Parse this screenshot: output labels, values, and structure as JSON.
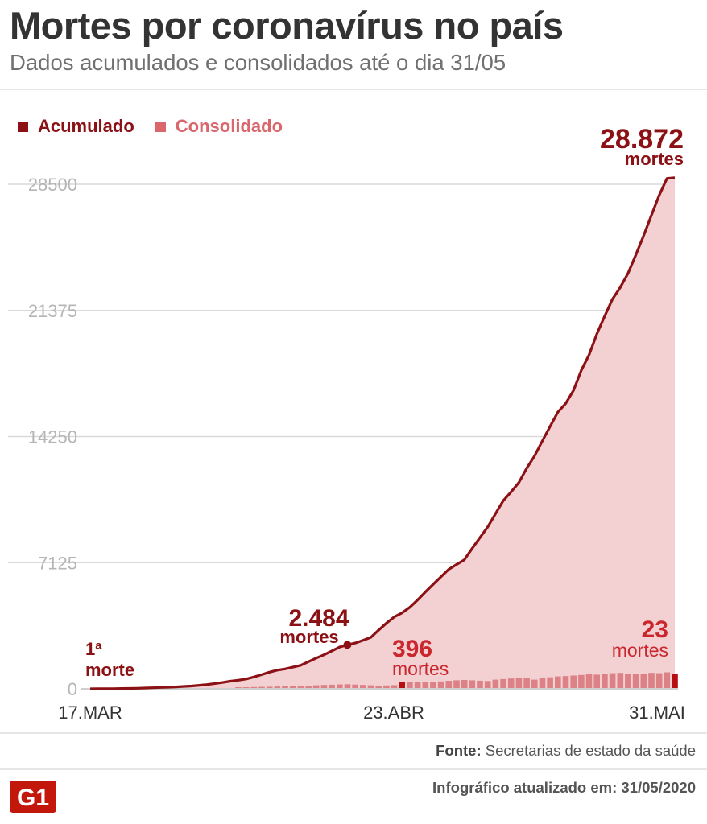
{
  "header": {
    "title": "Mortes por coronavírus no país",
    "subtitle": "Dados acumulados e consolidados até o dia 31/05"
  },
  "legend": [
    {
      "label": "Acumulado",
      "color": "#8b1115"
    },
    {
      "label": "Consolidado",
      "color": "#d9676c"
    }
  ],
  "colors": {
    "accent": "#8b1115",
    "bars": "#dc8286",
    "bar_highlight": "#b50f14",
    "area": "#f3d0d2",
    "grid": "#d9d9d9",
    "axis_text": "#b5b5b5"
  },
  "annotations": {
    "first_death": {
      "line1": "1ª",
      "line2": "morte"
    },
    "mid_total": {
      "value": "2.484",
      "unit": "mortes"
    },
    "mid_daily": {
      "value": "396",
      "unit": "mortes"
    },
    "end_total": {
      "value": "28.872",
      "unit": "mortes"
    },
    "end_daily": {
      "value": "23",
      "unit": "mortes"
    }
  },
  "footer": {
    "source_label": "Fonte:",
    "source_text": "Secretarias de estado da saúde",
    "updated": "Infográfico atualizado em: 31/05/2020",
    "logo_text": "G1"
  },
  "chart_data": {
    "type": "area",
    "x_start_label": "17.MAR",
    "x_ticks": [
      "17.MAR",
      "23.ABR",
      "31.MAI"
    ],
    "x_tick_index": [
      0,
      37,
      75
    ],
    "y_ticks": [
      0,
      7125,
      14250,
      21375,
      28500
    ],
    "ylim": [
      0,
      30000
    ],
    "series": [
      {
        "name": "Acumulado",
        "type": "line-area",
        "values": [
          1,
          4,
          7,
          11,
          18,
          25,
          34,
          46,
          57,
          77,
          92,
          111,
          136,
          159,
          201,
          240,
          299,
          359,
          432,
          486,
          553,
          667,
          800,
          941,
          1056,
          1124,
          1223,
          1328,
          1532,
          1736,
          1924,
          2141,
          2361,
          2484,
          2587,
          2741,
          2906,
          3313,
          3704,
          4057,
          4286,
          4603,
          5017,
          5466,
          5901,
          6329,
          6750,
          7025,
          7288,
          7921,
          8536,
          9146,
          9897,
          10627,
          11123,
          11653,
          12461,
          13149,
          13993,
          14817,
          15633,
          16118,
          16853,
          17983,
          18859,
          20047,
          21048,
          22013,
          22666,
          23473,
          24512,
          25598,
          26754,
          27878,
          28834,
          28872
        ]
      },
      {
        "name": "Consolidado",
        "type": "bar",
        "values": [
          0,
          0,
          0,
          0,
          0,
          0,
          0,
          0,
          0,
          0,
          0,
          0,
          0,
          0,
          0,
          0,
          0,
          0,
          0,
          60,
          80,
          100,
          110,
          120,
          130,
          140,
          150,
          160,
          180,
          200,
          220,
          230,
          250,
          260,
          240,
          220,
          200,
          180,
          190,
          210,
          396,
          390,
          380,
          370,
          380,
          420,
          450,
          480,
          500,
          480,
          460,
          440,
          520,
          550,
          580,
          600,
          620,
          520,
          600,
          650,
          700,
          720,
          750,
          780,
          820,
          800,
          850,
          880,
          900,
          860,
          820,
          850,
          900,
          880,
          930,
          23
        ]
      }
    ]
  }
}
